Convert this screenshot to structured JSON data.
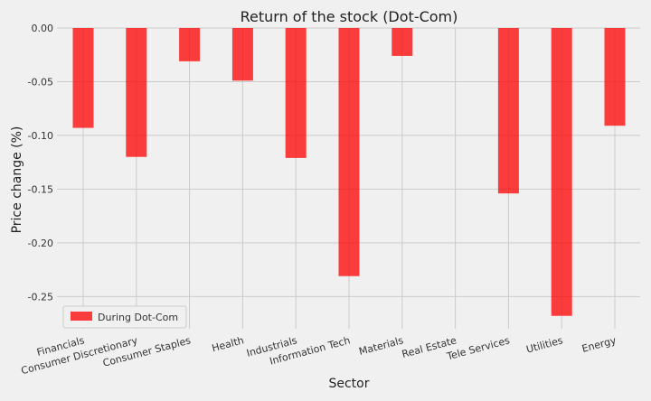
{
  "chart_data": {
    "type": "bar",
    "title": "Return of the stock (Dot-Com)",
    "xlabel": "Sector",
    "ylabel": "Price change (%)",
    "categories": [
      "Financials",
      "Consumer Discretionary",
      "Consumer Staples",
      "Health",
      "Industrials",
      "Information Tech",
      "Materials",
      "Real Estate",
      "Tele Services",
      "Utilities",
      "Energy"
    ],
    "series": [
      {
        "name": "During Dot-Com",
        "color": "#ff0000",
        "values": [
          -0.093,
          -0.12,
          -0.031,
          -0.049,
          -0.121,
          -0.231,
          -0.026,
          0.0,
          -0.154,
          -0.268,
          -0.091
        ]
      }
    ],
    "ylim": [
      -0.28,
      0.0
    ],
    "yticks": [
      "0.00",
      "-0.05",
      "-0.10",
      "-0.15",
      "-0.20",
      "-0.25"
    ],
    "grid": true,
    "legend_position": "bottom-left"
  }
}
